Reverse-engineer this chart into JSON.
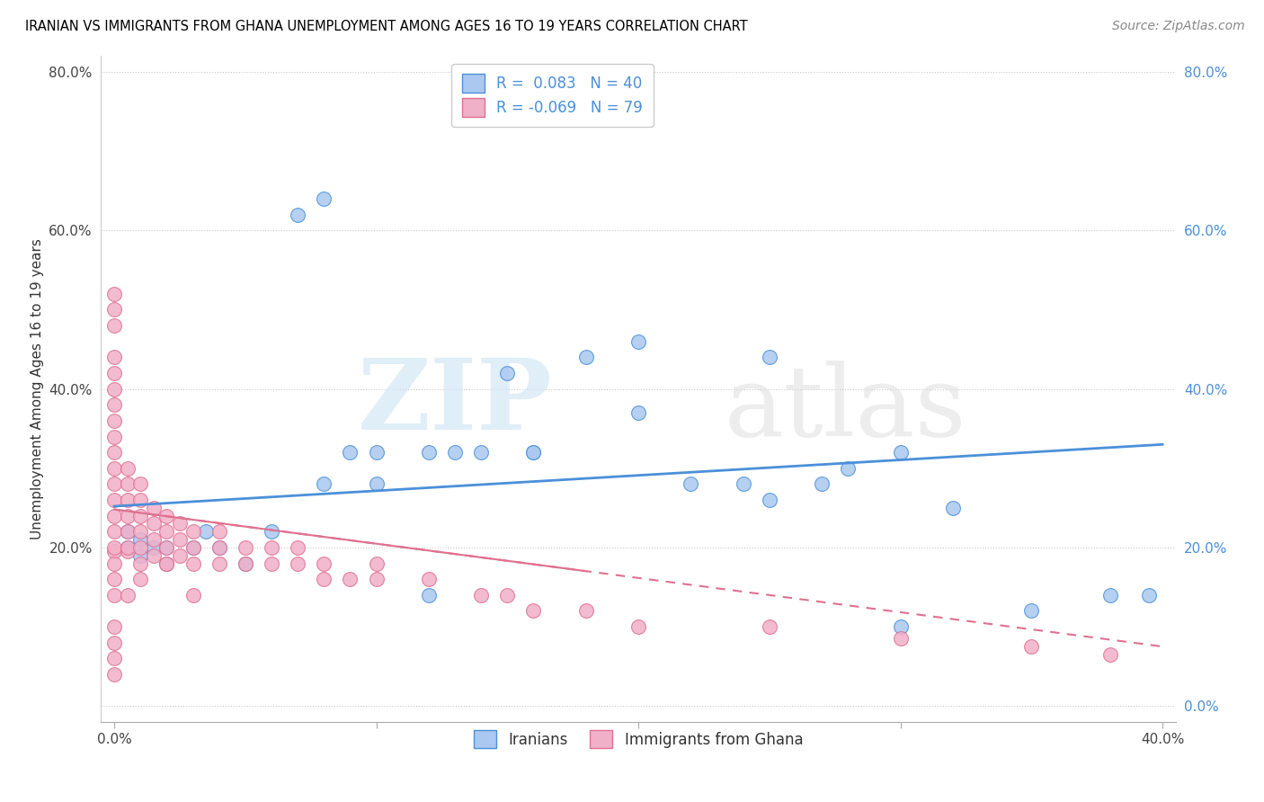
{
  "title": "IRANIAN VS IMMIGRANTS FROM GHANA UNEMPLOYMENT AMONG AGES 16 TO 19 YEARS CORRELATION CHART",
  "source": "Source: ZipAtlas.com",
  "ylabel": "Unemployment Among Ages 16 to 19 years",
  "r1": 0.083,
  "n1": 40,
  "r2": -0.069,
  "n2": 79,
  "xlim": [
    -0.005,
    0.405
  ],
  "ylim": [
    -0.02,
    0.82
  ],
  "xticks": [
    0.0,
    0.1,
    0.2,
    0.3,
    0.4
  ],
  "xtick_labels": [
    "0.0%",
    "",
    "",
    "",
    "40.0%"
  ],
  "yticks": [
    0.0,
    0.2,
    0.4,
    0.6,
    0.8
  ],
  "ytick_labels_left": [
    "",
    "20.0%",
    "40.0%",
    "60.0%",
    "80.0%"
  ],
  "ytick_labels_right": [
    "0.0%",
    "20.0%",
    "40.0%",
    "60.0%",
    "80.0%"
  ],
  "color_iranian": "#aac8f0",
  "color_ghana": "#f0b0c8",
  "line_color_iranian": "#4a90d9",
  "line_color_ghana": "#e07090",
  "legend1_label": "Iranians",
  "legend2_label": "Immigrants from Ghana",
  "iranians_x": [
    0.005,
    0.005,
    0.01,
    0.01,
    0.015,
    0.02,
    0.02,
    0.03,
    0.035,
    0.04,
    0.05,
    0.06,
    0.07,
    0.08,
    0.09,
    0.1,
    0.1,
    0.12,
    0.13,
    0.14,
    0.15,
    0.16,
    0.16,
    0.18,
    0.2,
    0.22,
    0.24,
    0.25,
    0.27,
    0.28,
    0.3,
    0.32,
    0.2,
    0.25,
    0.38,
    0.395,
    0.3,
    0.35,
    0.08,
    0.12
  ],
  "iranians_y": [
    0.22,
    0.2,
    0.21,
    0.19,
    0.2,
    0.2,
    0.18,
    0.2,
    0.22,
    0.2,
    0.18,
    0.22,
    0.62,
    0.64,
    0.32,
    0.28,
    0.32,
    0.32,
    0.32,
    0.32,
    0.42,
    0.32,
    0.32,
    0.44,
    0.46,
    0.28,
    0.28,
    0.44,
    0.28,
    0.3,
    0.32,
    0.25,
    0.37,
    0.26,
    0.14,
    0.14,
    0.1,
    0.12,
    0.28,
    0.14
  ],
  "ghana_x": [
    0.0,
    0.0,
    0.0,
    0.0,
    0.0,
    0.0,
    0.0,
    0.0,
    0.0,
    0.0,
    0.0,
    0.0,
    0.0,
    0.0,
    0.0,
    0.0,
    0.0,
    0.0,
    0.0,
    0.0,
    0.005,
    0.005,
    0.005,
    0.005,
    0.005,
    0.005,
    0.005,
    0.01,
    0.01,
    0.01,
    0.01,
    0.01,
    0.01,
    0.015,
    0.015,
    0.015,
    0.015,
    0.02,
    0.02,
    0.02,
    0.02,
    0.025,
    0.025,
    0.025,
    0.03,
    0.03,
    0.03,
    0.04,
    0.04,
    0.04,
    0.05,
    0.05,
    0.06,
    0.06,
    0.07,
    0.07,
    0.08,
    0.08,
    0.09,
    0.1,
    0.1,
    0.12,
    0.14,
    0.15,
    0.16,
    0.18,
    0.2,
    0.25,
    0.3,
    0.35,
    0.38,
    0.005,
    0.01,
    0.02,
    0.03,
    0.0,
    0.0,
    0.0,
    0.0
  ],
  "ghana_y": [
    0.195,
    0.2,
    0.22,
    0.24,
    0.26,
    0.28,
    0.3,
    0.32,
    0.34,
    0.36,
    0.38,
    0.4,
    0.42,
    0.44,
    0.48,
    0.5,
    0.52,
    0.14,
    0.16,
    0.18,
    0.195,
    0.2,
    0.22,
    0.24,
    0.26,
    0.28,
    0.3,
    0.18,
    0.2,
    0.22,
    0.24,
    0.26,
    0.28,
    0.19,
    0.21,
    0.23,
    0.25,
    0.18,
    0.2,
    0.22,
    0.24,
    0.19,
    0.21,
    0.23,
    0.18,
    0.2,
    0.22,
    0.18,
    0.2,
    0.22,
    0.18,
    0.2,
    0.18,
    0.2,
    0.18,
    0.2,
    0.18,
    0.16,
    0.16,
    0.16,
    0.18,
    0.16,
    0.14,
    0.14,
    0.12,
    0.12,
    0.1,
    0.1,
    0.085,
    0.075,
    0.065,
    0.14,
    0.16,
    0.18,
    0.14,
    0.1,
    0.08,
    0.06,
    0.04
  ]
}
